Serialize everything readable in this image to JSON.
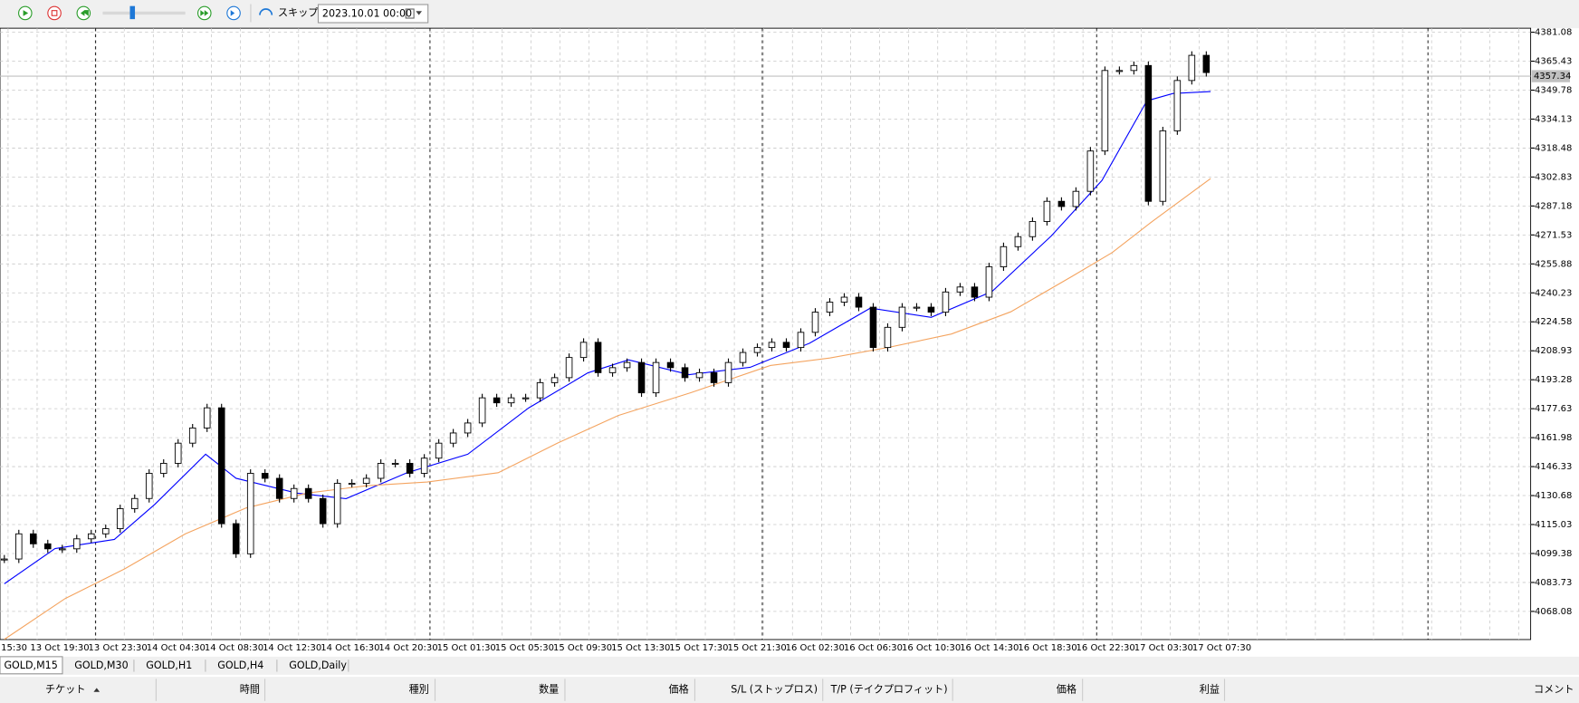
{
  "toolbar": {
    "skip": "スキップ",
    "date": "2023.10.01 00:00"
  },
  "chart_data": {
    "type": "candlestick",
    "closes": [
      4096.4,
      4110.0,
      4104.6,
      4101.9,
      4101.9,
      4107.3,
      4110.0,
      4112.8,
      4123.6,
      4129.1,
      4142.7,
      4148.1,
      4159.0,
      4167.2,
      4178.1,
      4115.5,
      4099.2,
      4142.7,
      4140.0,
      4129.1,
      4134.5,
      4129.1,
      4115.5,
      4137.3,
      4137.3,
      4140.0,
      4148.1,
      4148.1,
      4142.7,
      4150.9,
      4159.0,
      4164.5,
      4169.9,
      4183.5,
      4180.8,
      4183.5,
      4183.5,
      4191.7,
      4194.4,
      4205.3,
      4213.5,
      4197.1,
      4199.8,
      4202.6,
      4186.2,
      4202.6,
      4199.8,
      4194.4,
      4197.1,
      4191.7,
      4202.6,
      4208.0,
      4210.7,
      4213.5,
      4210.7,
      4218.9,
      4229.8,
      4235.2,
      4237.9,
      4232.5,
      4210.7,
      4221.6,
      4232.5,
      4232.5,
      4229.8,
      4240.7,
      4243.4,
      4237.9,
      4254.3,
      4265.2,
      4270.6,
      4278.8,
      4289.7,
      4286.9,
      4295.1,
      4316.9,
      4360.4,
      4360.4,
      4363.1,
      4289.7,
      4327.8,
      4355.0,
      4368.6,
      4359.3
    ],
    "series": [
      {
        "color": "#0000ff",
        "x": [
          0,
          3.5,
          7.6,
          10.4,
          13.9,
          16,
          20.2,
          23.6,
          27.8,
          32,
          36.2,
          40.3,
          43.1,
          47.3,
          51.5,
          55.6,
          59.8,
          64,
          68.2,
          72.3,
          75.8,
          78.9,
          80.7,
          83.3
        ],
        "values": [
          4083,
          4102,
          4107,
          4126,
          4153,
          4140,
          4132,
          4129,
          4143,
          4153,
          4178,
          4197,
          4204,
          4196,
          4200,
          4213,
          4232,
          4227,
          4241,
          4271,
          4301,
          4344,
          4348,
          4349
        ]
      },
      {
        "color": "#f4a460",
        "x": [
          0,
          4.2,
          8.3,
          12.5,
          16.7,
          20.9,
          25,
          29.2,
          34.1,
          38.2,
          42.4,
          47.3,
          52.9,
          57,
          61.2,
          65.4,
          69.5,
          73.7,
          76.5,
          79.3,
          83.3
        ],
        "values": [
          4053,
          4075,
          4091,
          4110,
          4124,
          4132,
          4136,
          4138,
          4143,
          4159,
          4174,
          4186,
          4201,
          4205,
          4211,
          4218,
          4230,
          4249,
          4262,
          4279,
          4302
        ]
      }
    ],
    "last_price": 4357.34,
    "xlim": [
      -0.3,
      105.4
    ],
    "ylim": [
      4052.87,
      4383.26
    ],
    "yticks": [
      4381.08,
      4365.43,
      4349.78,
      4334.13,
      4318.48,
      4302.83,
      4287.18,
      4271.53,
      4255.88,
      4240.23,
      4224.58,
      4208.93,
      4193.28,
      4177.63,
      4161.98,
      4146.33,
      4130.68,
      4115.03,
      4099.38,
      4083.73,
      4068.08
    ],
    "time_labels": [
      "15:30",
      "13 Oct 19:30",
      "13 Oct 23:30",
      "14 Oct 04:30",
      "14 Oct 08:30",
      "14 Oct 12:30",
      "14 Oct 16:30",
      "14 Oct 20:30",
      "15 Oct 01:30",
      "15 Oct 05:30",
      "15 Oct 09:30",
      "15 Oct 13:30",
      "15 Oct 17:30",
      "15 Oct 21:30",
      "16 Oct 02:30",
      "16 Oct 06:30",
      "16 Oct 10:30",
      "16 Oct 14:30",
      "16 Oct 18:30",
      "16 Oct 22:30",
      "17 Oct 03:30",
      "17 Oct 07:30"
    ]
  },
  "tabs": [
    "GOLD,M15",
    "GOLD,M30",
    "GOLD,H1",
    "GOLD,H4",
    "GOLD,Daily"
  ],
  "columns": [
    "チケット",
    "時間",
    "種別",
    "数量",
    "価格",
    "S/L (ストップロス)",
    "T/P (テイクプロフィット)",
    "価格",
    "利益",
    "コメント"
  ]
}
